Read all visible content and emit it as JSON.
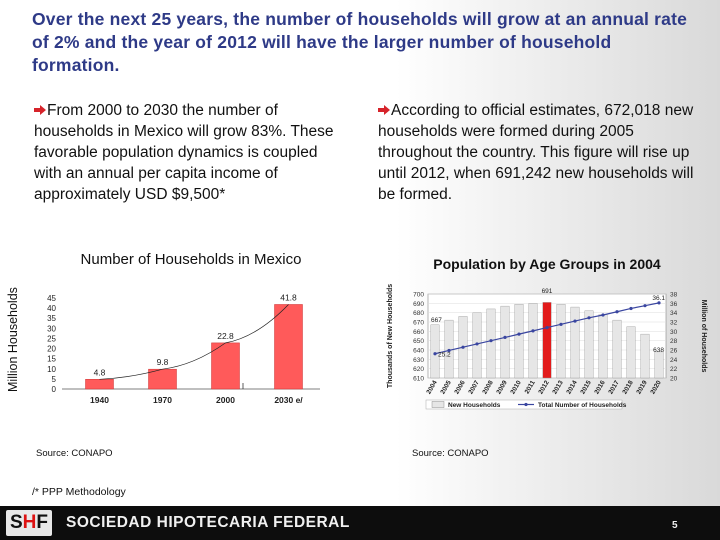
{
  "title": "Over the next 25 years, the number of households will grow at an annual rate of 2% and the year of 2012 will have the larger number of household formation.",
  "bullets": {
    "left": "From 2000 to 2030 the number of households in Mexico will grow 83%. These favorable population dynamics is coupled with an annual per capita income of approximately USD $9,500*",
    "right": "According to official estimates, 672,018 new households were formed during 2005 throughout the country.  This figure will rise up until 2012, when 691,242 new households will be formed."
  },
  "colors": {
    "title": "#2e3a87",
    "bullet_arrow": "#d6232a",
    "bar": "#ff5a5a",
    "line": "#3a46a0",
    "highlight_bar": "#e21b1b"
  },
  "chart_data": [
    {
      "type": "bar",
      "title": "Number of Households in Mexico",
      "ylabel": "Million Households",
      "categories": [
        "1940",
        "1970",
        "2000",
        "2030 e/"
      ],
      "values": [
        4.8,
        9.8,
        22.8,
        41.8
      ],
      "yticks": [
        "0",
        "5",
        "10",
        "15",
        "20",
        "25",
        "30",
        "35",
        "40",
        "45"
      ],
      "ylim": [
        0,
        45
      ],
      "trendline": true,
      "source": "Source: CONAPO"
    },
    {
      "type": "bar",
      "title": "Population by Age Groups in 2004",
      "ylabel": "Thousands of New Households",
      "y2label": "Million of Households",
      "categories": [
        "2004",
        "2005",
        "2006",
        "2007",
        "2008",
        "2009",
        "2010",
        "2011",
        "2012",
        "2013",
        "2014",
        "2015",
        "2016",
        "2017",
        "2018",
        "2019",
        "2020"
      ],
      "yticks": [
        "610",
        "620",
        "630",
        "640",
        "650",
        "660",
        "670",
        "680",
        "690",
        "700"
      ],
      "ylim": [
        610,
        700
      ],
      "y2ticks": [
        "20",
        "22",
        "24",
        "26",
        "28",
        "30",
        "32",
        "34",
        "36",
        "38"
      ],
      "y2lim": [
        20,
        38
      ],
      "series": [
        {
          "name": "New Households",
          "values": [
            667,
            672,
            676,
            680,
            684,
            687,
            689,
            690,
            691,
            689,
            686,
            682,
            678,
            672,
            665,
            657,
            638
          ]
        },
        {
          "name": "Total Number of Households",
          "values": [
            25.2,
            25.9,
            26.6,
            27.3,
            28.0,
            28.7,
            29.4,
            30.1,
            30.8,
            31.5,
            32.2,
            32.9,
            33.5,
            34.2,
            34.9,
            35.5,
            36.1
          ]
        }
      ],
      "data_labels": {
        "first_bar": "667",
        "peak_bar": "691",
        "last_bar": "638",
        "line_start": "25.2",
        "line_end": "36.1"
      },
      "source": "Source: CONAPO"
    }
  ],
  "footnote": "/* PPP Methodology",
  "footer": {
    "logo_prefix": "S",
    "logo_mid": "H",
    "logo_suffix": "F",
    "company": "SOCIEDAD HIPOTECARIA FEDERAL",
    "page_number": "5"
  }
}
